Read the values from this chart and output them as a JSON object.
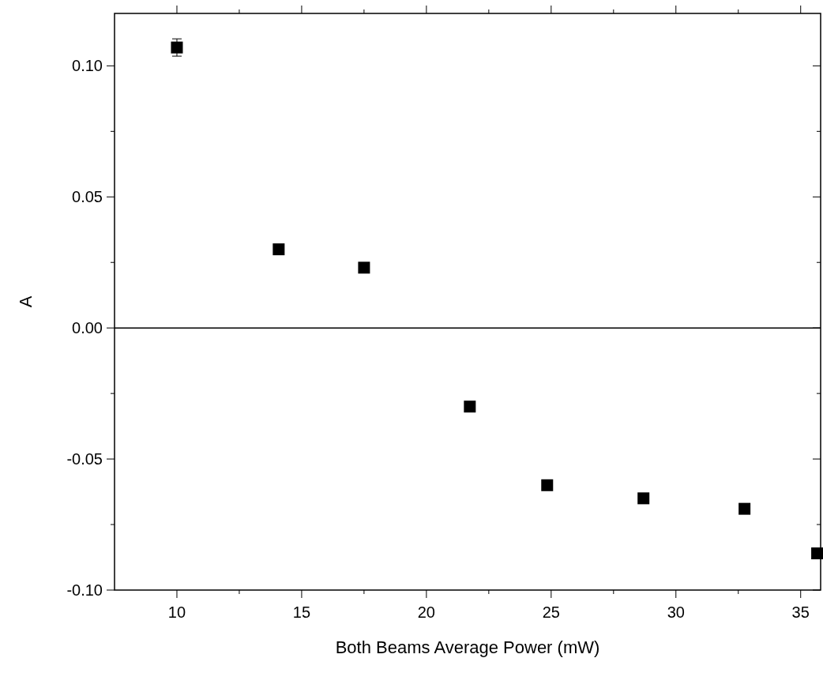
{
  "chart_data": {
    "type": "scatter",
    "xlabel": "Both Beams Average Power (mW)",
    "ylabel": "A",
    "x": [
      10,
      14.08,
      17.5,
      21.74,
      24.84,
      28.7,
      32.75,
      35.66
    ],
    "values": [
      0.107,
      0.03,
      0.023,
      -0.03,
      -0.06,
      -0.065,
      -0.069,
      -0.086
    ],
    "errors": [
      0.0033,
      null,
      null,
      null,
      null,
      null,
      null,
      null
    ],
    "color": "#000000",
    "marker": "square",
    "xlim": [
      7.5,
      35.8
    ],
    "xticks": [
      10,
      {
        "value": 12.5,
        "label": null
      },
      15,
      {
        "value": 17.5,
        "label": null
      },
      20,
      {
        "value": 22.5,
        "label": null
      },
      25,
      {
        "value": 27.5,
        "label": null
      },
      30,
      {
        "value": 32.5,
        "label": null
      },
      35
    ],
    "ylim": [
      -0.1,
      0.12
    ],
    "yticks": [
      {
        "value": -0.1,
        "label": "-0.10"
      },
      {
        "value": -0.075,
        "label": null
      },
      {
        "value": -0.05,
        "label": "-0.05"
      },
      {
        "value": -0.025,
        "label": null
      },
      {
        "value": 0,
        "label": "0.00"
      },
      {
        "value": 0.025,
        "label": null
      },
      {
        "value": 0.05,
        "label": "0.05"
      },
      {
        "value": 0.075,
        "label": null
      },
      {
        "value": 0.1,
        "label": "0.10"
      }
    ],
    "ref_lines": [
      {
        "axis": "y",
        "value": 0,
        "color": "#000000"
      }
    ]
  }
}
